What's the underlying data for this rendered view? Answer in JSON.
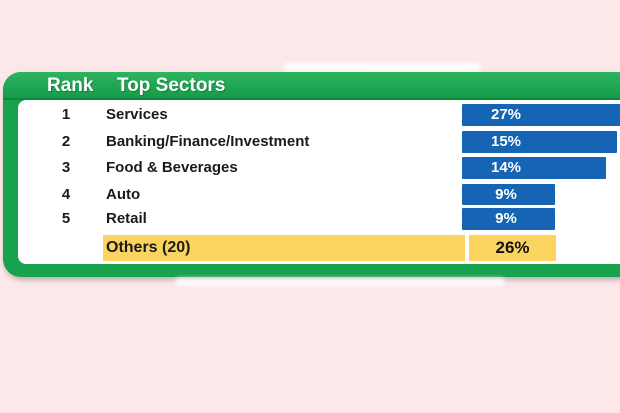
{
  "chart_data": {
    "type": "bar",
    "orientation": "horizontal",
    "legend": "none",
    "grid": false,
    "header": {
      "rank": "Rank",
      "sectors": "Top Sectors"
    },
    "categories": [
      "Services",
      "Banking/Finance/Investment",
      "Food & Beverages",
      "Auto",
      "Retail",
      "Others (20)"
    ],
    "values": [
      27,
      15,
      14,
      9,
      9,
      26
    ],
    "rows": [
      {
        "rank": "1",
        "sector": "Services",
        "value": 27,
        "label": "27%",
        "highlight": false
      },
      {
        "rank": "2",
        "sector": "Banking/Finance/Investment",
        "value": 15,
        "label": "15%",
        "highlight": false
      },
      {
        "rank": "3",
        "sector": "Food & Beverages",
        "value": 14,
        "label": "14%",
        "highlight": false
      },
      {
        "rank": "4",
        "sector": "Auto",
        "value": 9,
        "label": "9%",
        "highlight": false
      },
      {
        "rank": "5",
        "sector": "Retail",
        "value": 9,
        "label": "9%",
        "highlight": false
      },
      {
        "rank": "",
        "sector": "Others (20)",
        "value": 26,
        "label": "26%",
        "highlight": true
      }
    ],
    "colors": {
      "bar": "#1565b4",
      "highlight_row": "#fbd35f",
      "header_bg": "#18a24e",
      "panel_border": "#18a24e",
      "background": "#fce7e9",
      "bar_label_text": "#ffffff",
      "row_text": "#1b1b1b"
    }
  }
}
